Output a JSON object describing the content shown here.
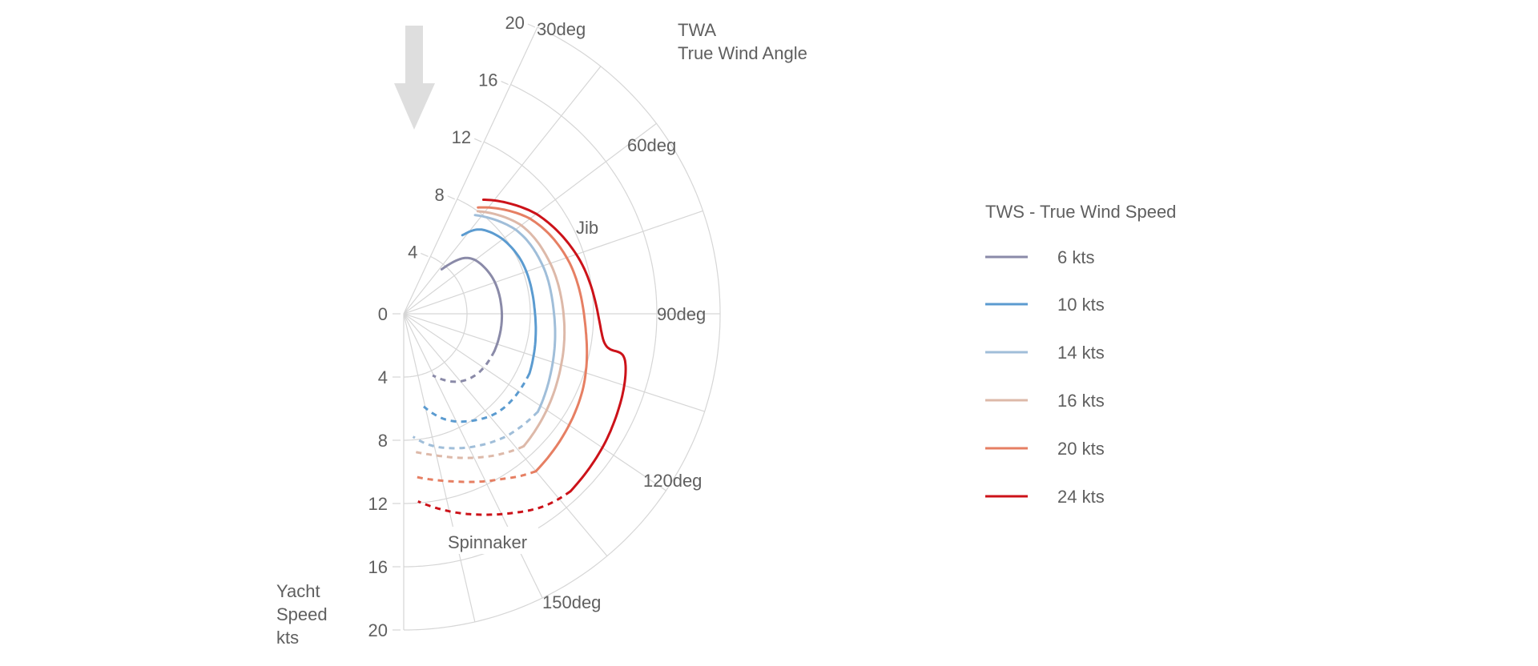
{
  "chart_data": {
    "type": "line",
    "polar": true,
    "angular_axis": {
      "label_lines": [
        "TWA",
        "True Wind Angle"
      ],
      "range_deg": [
        30,
        180
      ],
      "spokes_deg": [
        30,
        45,
        60,
        75,
        90,
        105,
        120,
        135,
        150,
        165,
        180
      ],
      "tick_labels": [
        "30deg",
        "60deg",
        "90deg",
        "120deg",
        "150deg"
      ]
    },
    "radial_axis": {
      "label_lines": [
        "Yacht",
        "Speed",
        "kts"
      ],
      "range": [
        0,
        20
      ],
      "ticks": [
        "0",
        "4",
        "8",
        "12",
        "16",
        "20"
      ],
      "upper_ticks": [
        "4",
        "8",
        "12",
        "16",
        "20"
      ]
    },
    "annotations": {
      "jib": "Jib",
      "spinnaker": "Spinnaker"
    },
    "wind_arrow_icon": "arrow-down-icon",
    "grid": true,
    "legend": {
      "title": "TWS - True Wind Speed",
      "placement": "right"
    },
    "series": [
      {
        "name": "6 kts",
        "color": "#8a8aa8",
        "jib": [
          [
            47,
            3.7
          ],
          [
            55,
            5.3
          ],
          [
            70,
            6.0
          ],
          [
            89,
            6.2
          ],
          [
            109,
            6.2
          ]
        ],
        "spinnaker": [
          [
            109,
            6.2
          ],
          [
            125,
            6.0
          ],
          [
            138,
            5.4
          ],
          [
            151,
            4.3
          ]
        ]
      },
      {
        "name": "10 kts",
        "color": "#5b9bd0",
        "jib": [
          [
            43,
            6.2
          ],
          [
            50,
            7.3
          ],
          [
            68,
            8.1
          ],
          [
            90,
            8.3
          ],
          [
            112,
            8.8
          ]
        ],
        "spinnaker": [
          [
            112,
            8.8
          ],
          [
            128,
            8.7
          ],
          [
            140,
            8.2
          ],
          [
            155,
            7.2
          ],
          [
            166,
            6.0
          ]
        ]
      },
      {
        "name": "14 kts",
        "color": "#a0bed9",
        "jib": [
          [
            42,
            7.7
          ],
          [
            61,
            8.9
          ],
          [
            75,
            9.3
          ],
          [
            90,
            9.5
          ],
          [
            108,
            10.0
          ],
          [
            122,
            10.5
          ]
        ],
        "spinnaker": [
          [
            122,
            10.5
          ],
          [
            135,
            10.1
          ],
          [
            148,
            9.5
          ],
          [
            165,
            8.6
          ],
          [
            175,
            7.8
          ]
        ]
      },
      {
        "name": "16 kts",
        "color": "#ddb9a9",
        "jib": [
          [
            42,
            8.0
          ],
          [
            60,
            9.3
          ],
          [
            75,
            9.8
          ],
          [
            90,
            10.1
          ],
          [
            110,
            10.6
          ],
          [
            133,
            11.3
          ]
        ],
        "spinnaker": [
          [
            133,
            11.3
          ],
          [
            142,
            10.7
          ],
          [
            152,
            10.0
          ],
          [
            165,
            9.2
          ],
          [
            176,
            8.7
          ]
        ]
      },
      {
        "name": "20 kts",
        "color": "#e67f63",
        "jib": [
          [
            41,
            8.2
          ],
          [
            60,
            10.0
          ],
          [
            75,
            10.9
          ],
          [
            93,
            11.5
          ],
          [
            110,
            12.3
          ],
          [
            135,
            13.0
          ]
        ],
        "spinnaker": [
          [
            135,
            13.0
          ],
          [
            140,
            12.6
          ],
          [
            147,
            12.0
          ],
          [
            162,
            11.0
          ],
          [
            176,
            10.3
          ]
        ]
      },
      {
        "name": "24 kts",
        "color": "#cc1219",
        "jib": [
          [
            41,
            8.8
          ],
          [
            60,
            10.5
          ],
          [
            76,
            11.6
          ],
          [
            96,
            12.7
          ],
          [
            100,
            14.3
          ],
          [
            115,
            15.0
          ],
          [
            132,
            15.4
          ]
        ],
        "spinnaker": [
          [
            132,
            15.4
          ],
          [
            140,
            15.0
          ],
          [
            150,
            14.1
          ],
          [
            163,
            13.0
          ],
          [
            175,
            11.9
          ]
        ]
      }
    ]
  }
}
